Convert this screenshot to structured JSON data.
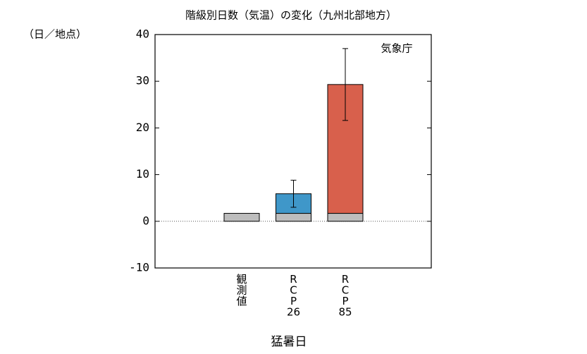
{
  "chart_data": {
    "type": "stacked-bar",
    "title": "階級別日数（気温）の変化（九州北部地方）",
    "y_unit": "（日／地点）",
    "source": "気象庁",
    "x_label": "猛暑日",
    "categories": [
      "観測値",
      "RCP26",
      "RCP85"
    ],
    "series": [
      {
        "color": "#bdbdbd",
        "values": [
          1.7,
          1.7,
          1.7
        ]
      },
      {
        "colors": [
          null,
          "#3f97c9",
          "#d8604c"
        ],
        "values": [
          null,
          4.2,
          27.6
        ],
        "errors": [
          null,
          2.9,
          7.7
        ]
      }
    ],
    "ylim": [
      -10,
      40
    ],
    "yticks": [
      -10,
      0,
      10,
      20,
      30,
      40
    ]
  }
}
